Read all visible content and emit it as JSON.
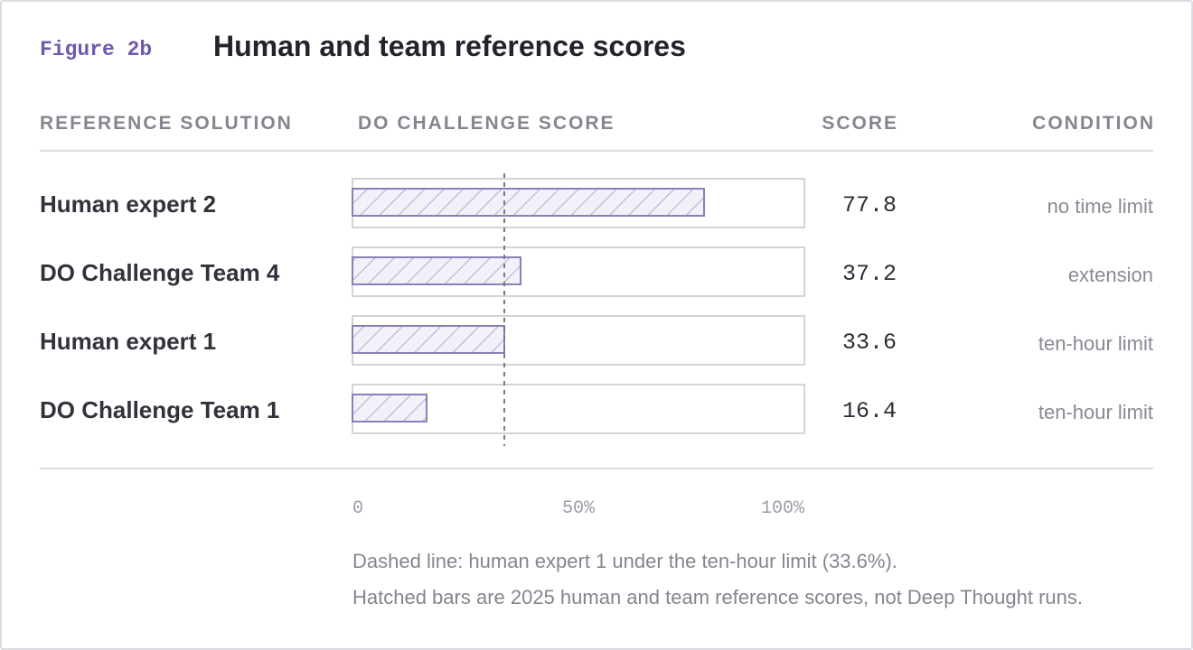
{
  "figure_label": "Figure 2b",
  "columns": {
    "solution": "REFERENCE SOLUTION",
    "bar": "DO CHALLENGE SCORE",
    "score": "SCORE",
    "condition": "CONDITION"
  },
  "rows": [
    {
      "label": "Human expert 2",
      "score_text": "77.8",
      "condition": "no time limit"
    },
    {
      "label": "DO Challenge Team 4",
      "score_text": "37.2",
      "condition": "extension"
    },
    {
      "label": "Human expert 1",
      "score_text": "33.6",
      "condition": "ten-hour limit"
    },
    {
      "label": "DO Challenge Team 1",
      "score_text": "16.4",
      "condition": "ten-hour limit"
    }
  ],
  "notes": {
    "line1": "Dashed line: human expert 1 under the ten-hour limit (33.6%).",
    "line2": "Hatched bars are 2025 human and team reference scores, not Deep Thought runs."
  },
  "colors": {
    "accent": "#7059ad",
    "bar_fill": "#f3f1f8",
    "bar_stroke": "#8a7fb8",
    "hatch": "#b3a8d4",
    "track_border": "#d4d3da",
    "reference_line": "#7a7786"
  },
  "chart_data": {
    "type": "bar",
    "orientation": "horizontal",
    "title": "Human and team reference scores",
    "categories": [
      "Human expert 2",
      "DO Challenge Team 4",
      "Human expert 1",
      "DO Challenge Team 1"
    ],
    "values": [
      77.8,
      37.2,
      33.6,
      16.4
    ],
    "xlim": [
      0,
      100
    ],
    "x_ticks": [
      "0",
      "50%",
      "100%"
    ],
    "reference_line": {
      "value": 33.6,
      "style": "dashed"
    },
    "grid": false,
    "legend": "none"
  }
}
